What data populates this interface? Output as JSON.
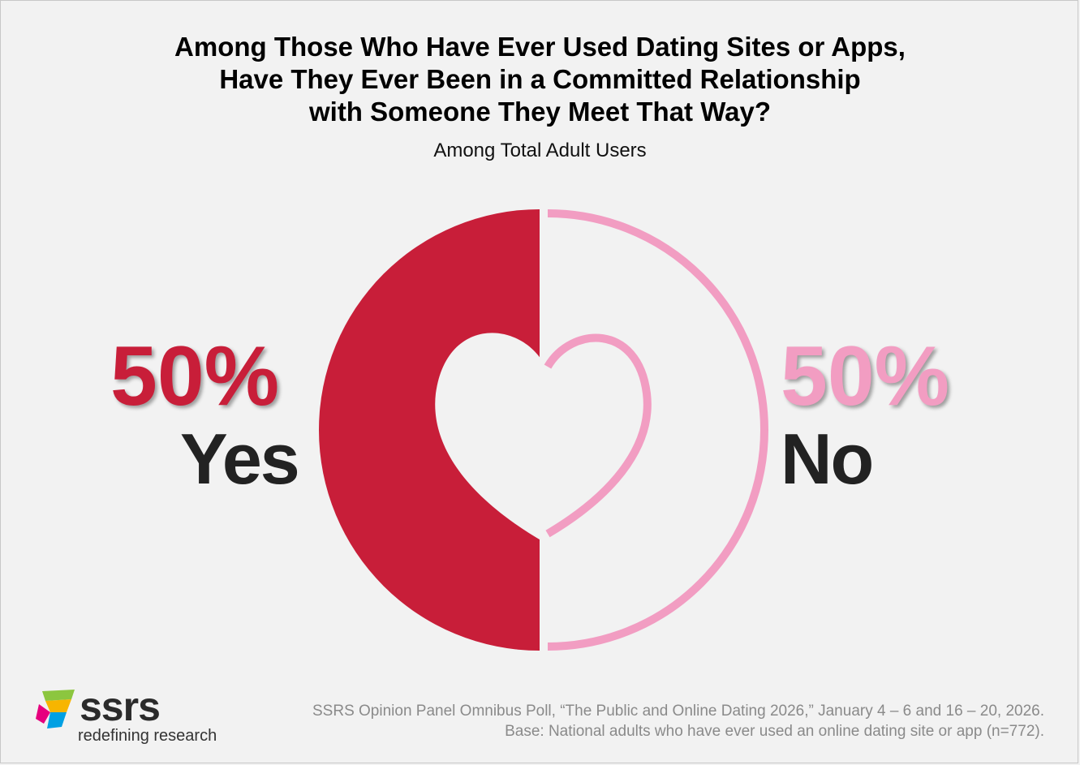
{
  "title_lines": [
    "Among Those Who Have Ever Used Dating Sites or Apps,",
    "Have They Ever Been in a Committed Relationship",
    "with Someone They Meet That Way?"
  ],
  "subtitle": "Among Total Adult Users",
  "chart_data": {
    "type": "pie",
    "title": "Among Those Who Have Ever Used Dating Sites or Apps, Have They Ever Been in a Committed Relationship with Someone They Meet That Way?",
    "subtitle": "Among Total Adult Users",
    "categories": [
      "Yes",
      "No"
    ],
    "values": [
      50,
      50
    ],
    "value_labels": [
      "50%",
      "50%"
    ],
    "colors": {
      "yes": "#c81e39",
      "no": "#f29dc2",
      "no_fill": "#f2f2f2"
    }
  },
  "source_lines": [
    "SSRS Opinion Panel Omnibus Poll, “The Public and Online Dating 2026,” January 4 – 6 and 16 – 20, 2026.",
    "Base: National adults who have ever used an online dating site or app (n=772)."
  ],
  "logo": {
    "wordmark": "ssrs",
    "tagline": "redefining research"
  }
}
